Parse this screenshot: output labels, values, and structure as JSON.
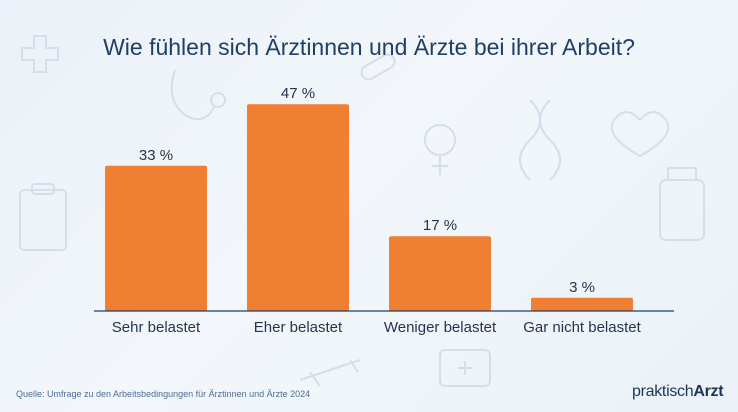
{
  "chart_data": {
    "type": "bar",
    "title": "Wie fühlen sich Ärztinnen und Ärzte bei ihrer Arbeit?",
    "categories": [
      "Sehr belastet",
      "Eher belastet",
      "Weniger belastet",
      "Gar nicht belastet"
    ],
    "values": [
      33,
      47,
      17,
      3
    ],
    "value_labels": [
      "33 %",
      "47 %",
      "17 %",
      "3 %"
    ],
    "unit": "%",
    "ylim": [
      0,
      50
    ],
    "grid": false,
    "legend": "none",
    "bar_color": "#ef7f32"
  },
  "source": "Quelle: Umfrage zu den Arbeitsbedingungen für Ärztinnen und Ärzte 2024",
  "brand": {
    "part1": "praktisch",
    "part2": "Arzt"
  },
  "colors": {
    "title": "#1e3f66",
    "axis": "#1e3f66",
    "source": "#4a6e93",
    "decor": "#cddcea"
  }
}
